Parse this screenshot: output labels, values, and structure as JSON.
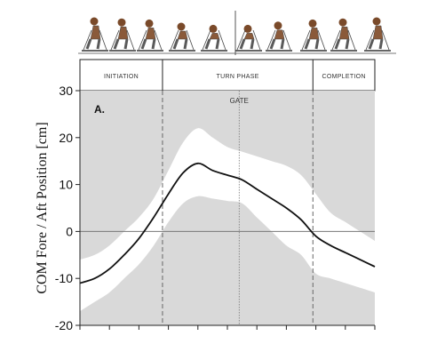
{
  "chart_data": {
    "type": "area",
    "title": "",
    "xlabel": "",
    "ylabel": "COM Fore / Aft Position [cm]",
    "panel_label": "A.",
    "ylim": [
      -20,
      30
    ],
    "xlim": [
      0,
      100
    ],
    "yticks": [
      30,
      20,
      10,
      0,
      -10,
      -20
    ],
    "xticks": [
      0,
      10,
      20,
      30,
      40,
      50,
      60,
      70,
      80,
      90,
      100
    ],
    "phases": [
      {
        "label": "INITIATION",
        "start": 0,
        "end": 28
      },
      {
        "label": "TURN PHASE",
        "start": 28,
        "end": 79
      },
      {
        "label": "COMPLETION",
        "start": 79,
        "end": 100
      }
    ],
    "gate": {
      "label": "GATE",
      "x": 54
    },
    "series": [
      {
        "type": "line",
        "x": [
          0,
          5,
          10,
          15,
          20,
          25,
          30,
          35,
          40,
          45,
          50,
          55,
          60,
          65,
          70,
          75,
          80,
          85,
          90,
          95,
          100
        ],
        "values": [
          -11,
          -10,
          -8,
          -5,
          -1.5,
          3,
          8,
          12.5,
          14.5,
          13,
          12,
          11,
          9,
          7,
          5,
          2.5,
          -1,
          -3,
          -4.5,
          -6,
          -7.5
        ]
      },
      {
        "type": "band",
        "x": [
          0,
          5,
          10,
          15,
          20,
          25,
          30,
          35,
          40,
          45,
          50,
          55,
          60,
          65,
          70,
          75,
          80,
          85,
          90,
          95,
          100
        ],
        "upper": [
          -6,
          -5,
          -3,
          0,
          3,
          7,
          13,
          19,
          22,
          20,
          18,
          17,
          16,
          15,
          14,
          12,
          8,
          4,
          2,
          0,
          -2
        ],
        "lower": [
          -17,
          -15,
          -13,
          -10,
          -7,
          -3,
          2,
          6,
          7.5,
          7,
          6.5,
          6,
          3,
          0,
          -3,
          -5,
          -9,
          -10,
          -11,
          -12,
          -13
        ]
      }
    ],
    "grid": false,
    "background_color": "#d9d9d9",
    "band_color": "#ffffff",
    "line_color": "#111111"
  }
}
